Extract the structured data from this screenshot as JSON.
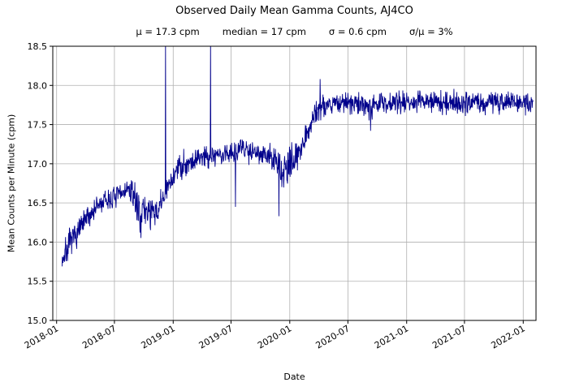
{
  "chart_data": {
    "type": "line",
    "title": "Observed Daily Mean Gamma Counts, AJ4CO",
    "annotations": {
      "mean": "μ = 17.3 cpm",
      "median": "median = 17 cpm",
      "sigma": "σ = 0.6 cpm",
      "sigma_over_mu": "σ/μ = 3%"
    },
    "xlabel": "Date",
    "ylabel": "Mean Counts per Minute (cpm)",
    "xlim": [
      "2017-12-20",
      "2022-02-10"
    ],
    "ylim": [
      15.0,
      18.5
    ],
    "x_ticks": [
      {
        "date": "2018-01-01",
        "label": "2018-01"
      },
      {
        "date": "2018-07-01",
        "label": "2018-07"
      },
      {
        "date": "2019-01-01",
        "label": "2019-01"
      },
      {
        "date": "2019-07-01",
        "label": "2019-07"
      },
      {
        "date": "2020-01-01",
        "label": "2020-01"
      },
      {
        "date": "2020-07-01",
        "label": "2020-07"
      },
      {
        "date": "2021-01-01",
        "label": "2021-01"
      },
      {
        "date": "2021-07-01",
        "label": "2021-07"
      },
      {
        "date": "2022-01-01",
        "label": "2022-01"
      }
    ],
    "y_ticks": [
      15.0,
      15.5,
      16.0,
      16.5,
      17.0,
      17.5,
      18.0,
      18.5
    ],
    "grid": true,
    "legend": "none",
    "line_color": "#00008b",
    "grid_color": "#b0b0b0",
    "series": [
      {
        "name": "AJ4CO daily mean gamma counts (cpm)",
        "start": "2018-01-18",
        "end": "2022-02-01",
        "trend_keypoints": [
          {
            "date": "2018-01-18",
            "value": 15.78,
            "noise_sd": 0.1
          },
          {
            "date": "2018-02-10",
            "value": 15.97,
            "noise_sd": 0.09
          },
          {
            "date": "2018-03-01",
            "value": 16.08,
            "noise_sd": 0.08
          },
          {
            "date": "2018-04-01",
            "value": 16.27,
            "noise_sd": 0.08
          },
          {
            "date": "2018-05-01",
            "value": 16.43,
            "noise_sd": 0.07
          },
          {
            "date": "2018-06-01",
            "value": 16.52,
            "noise_sd": 0.07
          },
          {
            "date": "2018-07-01",
            "value": 16.56,
            "noise_sd": 0.07
          },
          {
            "date": "2018-08-10",
            "value": 16.68,
            "noise_sd": 0.06
          },
          {
            "date": "2018-09-01",
            "value": 16.58,
            "noise_sd": 0.09
          },
          {
            "date": "2018-09-20",
            "value": 16.35,
            "noise_sd": 0.12
          },
          {
            "date": "2018-10-15",
            "value": 16.42,
            "noise_sd": 0.12
          },
          {
            "date": "2018-11-05",
            "value": 16.32,
            "noise_sd": 0.1
          },
          {
            "date": "2018-11-25",
            "value": 16.5,
            "noise_sd": 0.08
          },
          {
            "date": "2018-12-15",
            "value": 16.68,
            "noise_sd": 0.08
          },
          {
            "date": "2019-01-05",
            "value": 16.88,
            "noise_sd": 0.08
          },
          {
            "date": "2019-02-01",
            "value": 17.0,
            "noise_sd": 0.08
          },
          {
            "date": "2019-03-01",
            "value": 17.03,
            "noise_sd": 0.08
          },
          {
            "date": "2019-04-01",
            "value": 17.1,
            "noise_sd": 0.08
          },
          {
            "date": "2019-05-01",
            "value": 17.12,
            "noise_sd": 0.08
          },
          {
            "date": "2019-06-01",
            "value": 17.1,
            "noise_sd": 0.08
          },
          {
            "date": "2019-07-01",
            "value": 17.15,
            "noise_sd": 0.07
          },
          {
            "date": "2019-08-01",
            "value": 17.2,
            "noise_sd": 0.07
          },
          {
            "date": "2019-09-01",
            "value": 17.17,
            "noise_sd": 0.07
          },
          {
            "date": "2019-10-01",
            "value": 17.15,
            "noise_sd": 0.07
          },
          {
            "date": "2019-11-01",
            "value": 17.08,
            "noise_sd": 0.08
          },
          {
            "date": "2019-11-20",
            "value": 17.0,
            "noise_sd": 0.1
          },
          {
            "date": "2019-12-10",
            "value": 16.9,
            "noise_sd": 0.14
          },
          {
            "date": "2020-01-01",
            "value": 16.95,
            "noise_sd": 0.12
          },
          {
            "date": "2020-01-20",
            "value": 17.1,
            "noise_sd": 0.08
          },
          {
            "date": "2020-02-10",
            "value": 17.27,
            "noise_sd": 0.08
          },
          {
            "date": "2020-03-01",
            "value": 17.45,
            "noise_sd": 0.08
          },
          {
            "date": "2020-03-20",
            "value": 17.65,
            "noise_sd": 0.08
          },
          {
            "date": "2020-04-10",
            "value": 17.75,
            "noise_sd": 0.08
          },
          {
            "date": "2020-06-01",
            "value": 17.78,
            "noise_sd": 0.07
          },
          {
            "date": "2020-09-01",
            "value": 17.75,
            "noise_sd": 0.07
          },
          {
            "date": "2021-01-01",
            "value": 17.8,
            "noise_sd": 0.07
          },
          {
            "date": "2021-06-01",
            "value": 17.78,
            "noise_sd": 0.07
          },
          {
            "date": "2021-12-01",
            "value": 17.8,
            "noise_sd": 0.07
          },
          {
            "date": "2022-02-01",
            "value": 17.75,
            "noise_sd": 0.07
          }
        ],
        "spikes": [
          {
            "date": "2018-12-08",
            "value": 18.62
          },
          {
            "date": "2019-04-28",
            "value": 18.62
          },
          {
            "date": "2019-07-15",
            "value": 16.45
          },
          {
            "date": "2019-11-28",
            "value": 16.33
          },
          {
            "date": "2020-04-05",
            "value": 18.08
          },
          {
            "date": "2020-09-10",
            "value": 17.42
          }
        ]
      }
    ]
  }
}
